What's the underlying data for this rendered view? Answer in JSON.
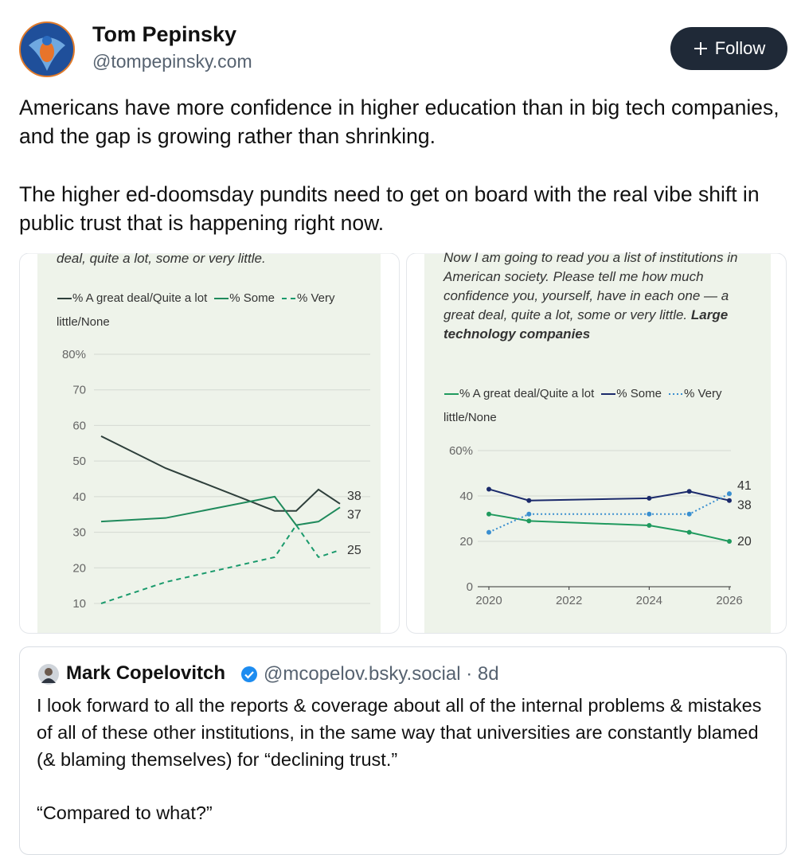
{
  "post": {
    "author": {
      "name": "Tom Pepinsky",
      "handle": "@tompepinsky.com"
    },
    "follow_button": "Follow",
    "text": [
      "Americans have more confidence in higher education than in big tech companies, and the gap is growing rather than shrinking.",
      "The higher ed-doomsday pundits need to get on board with the real vibe shift in public trust that is happening right now."
    ]
  },
  "chart_data": [
    {
      "type": "line",
      "title": "deal, quite a lot, some or very little.",
      "categories": [
        null,
        null,
        null,
        null,
        null,
        null
      ],
      "series": [
        {
          "name": "% A great deal/Quite a lot",
          "color": "#2e3f3b",
          "linestyle": "solid",
          "values": [
            57,
            48,
            36,
            36,
            42,
            38
          ]
        },
        {
          "name": "% Some",
          "color": "#1f8a5c",
          "linestyle": "solid",
          "values": [
            33,
            34,
            40,
            32,
            33,
            37
          ]
        },
        {
          "name": "% Very little/None",
          "color": "#1a9a6c",
          "linestyle": "dashed",
          "values": [
            10,
            16,
            23,
            32,
            23,
            25
          ]
        }
      ],
      "ylim": [
        10,
        80
      ],
      "yticks": [
        {
          "value": 80,
          "label": "80%"
        },
        70,
        60,
        50,
        40,
        30,
        20,
        10
      ],
      "grid": true,
      "markers": false
    },
    {
      "type": "line",
      "title": "Now I am going to read you a list of institutions in American society. Please tell me how much confidence you, yourself, have in each one — a great deal, quite a lot, some or very little.",
      "title_emphasis": "Large technology companies",
      "x": [
        2020,
        2021,
        2024,
        2025,
        2026
      ],
      "series": [
        {
          "name": "% A great deal/Quite a lot",
          "color": "#1f9a5e",
          "linestyle": "solid",
          "values": [
            32,
            29,
            27,
            24,
            20
          ]
        },
        {
          "name": "% Some",
          "color": "#1b2a6b",
          "linestyle": "solid",
          "values": [
            43,
            38,
            39,
            42,
            38
          ]
        },
        {
          "name": "% Very little/None",
          "color": "#3a8fd0",
          "linestyle": "dotted",
          "values": [
            24,
            32,
            32,
            32,
            41
          ]
        }
      ],
      "xlim": [
        2020,
        2026
      ],
      "xticks": [
        2020,
        2022,
        2024,
        2026
      ],
      "ylim": [
        0,
        60
      ],
      "yticks": [
        0,
        20,
        40,
        {
          "value": 60,
          "label": "60%"
        }
      ],
      "grid": true,
      "markers": true
    }
  ],
  "quote": {
    "author": {
      "name": "Mark Copelovitch",
      "meta": "@mcopelov.bsky.social · 8d"
    },
    "text": [
      "I look forward to all the reports & coverage about all of the internal problems & mistakes of all of these other institutions, in the same way that universities are constantly blamed (& blaming themselves) for “declining trust.”",
      "“Compared to what?”"
    ]
  }
}
